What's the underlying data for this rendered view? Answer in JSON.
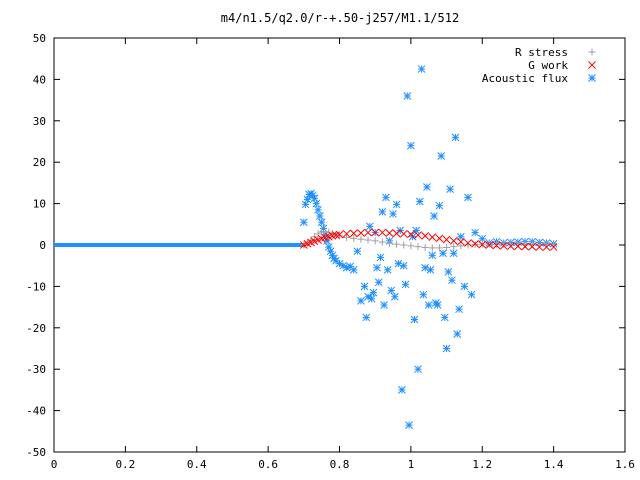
{
  "chart_data": {
    "type": "scatter",
    "title": "m4/n1.5/q2.0/r-+.50-j257/M1.1/512",
    "xlabel": "",
    "ylabel": "",
    "xlim": [
      0,
      1.6
    ],
    "ylim": [
      -50,
      50
    ],
    "xticks": [
      0,
      0.2,
      0.4,
      0.6,
      0.8,
      1,
      1.2,
      1.4,
      1.6
    ],
    "xtick_labels": [
      "0",
      "0.2",
      "0.4",
      "0.6",
      "0.8",
      "1",
      "1.2",
      "1.4",
      "1.6"
    ],
    "yticks": [
      -50,
      -40,
      -30,
      -20,
      -10,
      0,
      10,
      20,
      30,
      40,
      50
    ],
    "ytick_labels": [
      "-50",
      "-40",
      "-30",
      "-20",
      "-10",
      "0",
      "10",
      "20",
      "30",
      "40",
      "50"
    ],
    "grid": false,
    "legend_position": "top-right",
    "series": [
      {
        "name": "R stress",
        "marker": "plus",
        "color": "#a0a0a0",
        "x": [
          0.7,
          0.71,
          0.72,
          0.73,
          0.74,
          0.75,
          0.76,
          0.77,
          0.78,
          0.79,
          0.8,
          0.82,
          0.84,
          0.86,
          0.88,
          0.9,
          0.92,
          0.94,
          0.96,
          0.98,
          1.0,
          1.02,
          1.04,
          1.06,
          1.08,
          1.1,
          1.12,
          1.14,
          1.16,
          1.18,
          1.2,
          1.22,
          1.24,
          1.26,
          1.28,
          1.3,
          1.32,
          1.34,
          1.36,
          1.38,
          1.4
        ],
        "y": [
          0,
          0.5,
          1.2,
          2.0,
          2.7,
          3.1,
          3.2,
          3.1,
          2.8,
          2.5,
          2.2,
          1.8,
          1.6,
          1.4,
          1.2,
          1.0,
          0.7,
          0.4,
          0.2,
          0.0,
          -0.2,
          -0.4,
          -0.6,
          -0.7,
          -0.7,
          -0.6,
          -0.4,
          -0.2,
          0,
          0.1,
          0.2,
          0.2,
          0.2,
          0.2,
          0.2,
          0.2,
          0.1,
          0.1,
          0.1,
          0.1,
          0.1
        ]
      },
      {
        "name": "G work",
        "marker": "cross",
        "color": "#ff0000",
        "x": [
          0.7,
          0.71,
          0.72,
          0.73,
          0.74,
          0.75,
          0.76,
          0.77,
          0.78,
          0.79,
          0.8,
          0.82,
          0.84,
          0.86,
          0.88,
          0.9,
          0.92,
          0.94,
          0.96,
          0.98,
          1.0,
          1.02,
          1.04,
          1.06,
          1.08,
          1.1,
          1.12,
          1.14,
          1.16,
          1.18,
          1.2,
          1.22,
          1.24,
          1.26,
          1.28,
          1.3,
          1.32,
          1.34,
          1.36,
          1.38,
          1.4
        ],
        "y": [
          0,
          0.3,
          0.6,
          0.9,
          1.2,
          1.5,
          1.8,
          2.0,
          2.2,
          2.4,
          2.5,
          2.7,
          2.8,
          2.9,
          3.0,
          3.0,
          3.0,
          2.9,
          2.8,
          2.7,
          2.6,
          2.4,
          2.2,
          1.9,
          1.6,
          1.3,
          1.0,
          0.8,
          0.5,
          0.3,
          0.1,
          0,
          -0.1,
          -0.2,
          -0.3,
          -0.3,
          -0.4,
          -0.4,
          -0.5,
          -0.5,
          -0.5
        ]
      },
      {
        "name": "Acoustic flux",
        "marker": "star",
        "color": "#1e90ff",
        "x": [
          0.7,
          0.705,
          0.71,
          0.715,
          0.72,
          0.725,
          0.73,
          0.735,
          0.74,
          0.745,
          0.75,
          0.755,
          0.76,
          0.765,
          0.77,
          0.775,
          0.78,
          0.785,
          0.79,
          0.8,
          0.81,
          0.82,
          0.83,
          0.84,
          0.85,
          0.86,
          0.87,
          0.875,
          0.88,
          0.885,
          0.89,
          0.895,
          0.9,
          0.905,
          0.91,
          0.915,
          0.92,
          0.925,
          0.93,
          0.935,
          0.94,
          0.945,
          0.95,
          0.955,
          0.96,
          0.965,
          0.97,
          0.975,
          0.98,
          0.985,
          0.99,
          0.995,
          1.0,
          1.005,
          1.01,
          1.015,
          1.02,
          1.025,
          1.03,
          1.035,
          1.04,
          1.045,
          1.05,
          1.055,
          1.06,
          1.065,
          1.07,
          1.075,
          1.08,
          1.085,
          1.09,
          1.095,
          1.1,
          1.105,
          1.11,
          1.115,
          1.12,
          1.125,
          1.13,
          1.135,
          1.14,
          1.15,
          1.16,
          1.17,
          1.18,
          1.2,
          1.22,
          1.24,
          1.26,
          1.28,
          1.3,
          1.32,
          1.34,
          1.36,
          1.38,
          1.4
        ],
        "y": [
          5.5,
          9.8,
          11.0,
          12.2,
          12.4,
          12.0,
          11.3,
          10.0,
          8.5,
          7.0,
          5.5,
          4.0,
          2.5,
          1.0,
          -0.5,
          -1.5,
          -2.5,
          -3.2,
          -3.8,
          -4.5,
          -5.0,
          -5.5,
          -5.2,
          -6.0,
          -1.5,
          -13.5,
          -10.0,
          -17.5,
          -12.5,
          4.5,
          -13.0,
          -11.5,
          3.0,
          -5.5,
          -9.0,
          -3.0,
          8.0,
          -14.5,
          11.5,
          -6.0,
          1.0,
          -11.0,
          7.5,
          -12.5,
          9.8,
          -4.5,
          3.5,
          -35.0,
          -5.0,
          -9.5,
          36.0,
          -43.5,
          24.0,
          2.0,
          -18.0,
          3.5,
          -30.0,
          10.5,
          42.5,
          -12.0,
          -5.5,
          14.0,
          -14.5,
          -6.0,
          -2.5,
          7.0,
          -14.0,
          -14.5,
          9.5,
          21.5,
          -2.0,
          -17.5,
          -25.0,
          -6.5,
          13.5,
          -8.5,
          -2.0,
          26.0,
          -21.5,
          -15.5,
          2.0,
          -10.0,
          11.5,
          -12.0,
          3.0,
          1.5,
          0.5,
          0.8,
          0.5,
          0.6,
          0.7,
          0.8,
          0.8,
          0.6,
          0.5,
          0.3
        ]
      }
    ]
  }
}
